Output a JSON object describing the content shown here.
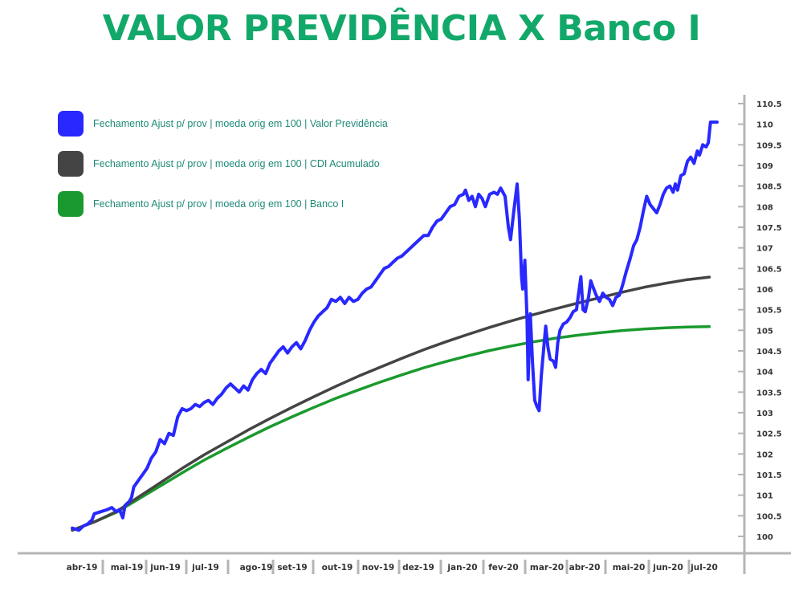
{
  "title": "VALOR PREVIDÊNCIA X Banco I",
  "colors": {
    "title": "#12a86a",
    "legend_text": "#1e8a78",
    "axis": "#b5b5b5"
  },
  "chart_data": {
    "type": "line",
    "title": "VALOR PREVIDÊNCIA X Banco I",
    "xlabel": "",
    "ylabel": "",
    "x_tick_labels": [
      "abr-19",
      "mai-19",
      "jun-19",
      "jul-19",
      "ago-19",
      "set-19",
      "out-19",
      "nov-19",
      "dez-19",
      "jan-20",
      "fev-20",
      "mar-20",
      "abr-20",
      "mai-20",
      "jun-20",
      "jul-20"
    ],
    "y_ticks": [
      "100",
      "100.5",
      "101",
      "101.5",
      "102",
      "102.5",
      "103",
      "103.5",
      "104",
      "104.5",
      "105",
      "105.5",
      "106",
      "106.5",
      "107",
      "107.5",
      "108",
      "108.5",
      "109",
      "109.5",
      "110",
      "110.5"
    ],
    "ylim": [
      100,
      110.5
    ],
    "grid": false,
    "legend_position": "top-left",
    "series": [
      {
        "name": "Fechamento Ajust p/ prov | moeda orig em 100 | Valor Previdência",
        "color": "#2828ff",
        "points": [
          [
            0.0,
            100.2
          ],
          [
            0.3,
            100.15
          ],
          [
            0.5,
            100.25
          ],
          [
            0.7,
            100.3
          ],
          [
            0.9,
            100.4
          ],
          [
            1.0,
            100.55
          ],
          [
            1.3,
            100.6
          ],
          [
            1.6,
            100.65
          ],
          [
            1.8,
            100.7
          ],
          [
            2.0,
            100.6
          ],
          [
            2.15,
            100.65
          ],
          [
            2.3,
            100.45
          ],
          [
            2.4,
            100.75
          ],
          [
            2.6,
            100.85
          ],
          [
            2.7,
            100.95
          ],
          [
            2.8,
            101.2
          ],
          [
            3.0,
            101.35
          ],
          [
            3.2,
            101.5
          ],
          [
            3.4,
            101.65
          ],
          [
            3.6,
            101.9
          ],
          [
            3.8,
            102.05
          ],
          [
            4.0,
            102.35
          ],
          [
            4.2,
            102.25
          ],
          [
            4.4,
            102.5
          ],
          [
            4.6,
            102.45
          ],
          [
            4.8,
            102.9
          ],
          [
            5.0,
            103.1
          ],
          [
            5.2,
            103.05
          ],
          [
            5.4,
            103.1
          ],
          [
            5.6,
            103.2
          ],
          [
            5.8,
            103.15
          ],
          [
            6.0,
            103.25
          ],
          [
            6.2,
            103.3
          ],
          [
            6.4,
            103.2
          ],
          [
            6.6,
            103.35
          ],
          [
            6.8,
            103.45
          ],
          [
            7.0,
            103.6
          ],
          [
            7.2,
            103.7
          ],
          [
            7.4,
            103.6
          ],
          [
            7.6,
            103.5
          ],
          [
            7.8,
            103.65
          ],
          [
            8.0,
            103.55
          ],
          [
            8.2,
            103.8
          ],
          [
            8.4,
            103.95
          ],
          [
            8.6,
            104.05
          ],
          [
            8.8,
            103.95
          ],
          [
            9.0,
            104.2
          ],
          [
            9.2,
            104.35
          ],
          [
            9.4,
            104.5
          ],
          [
            9.6,
            104.6
          ],
          [
            9.8,
            104.45
          ],
          [
            10.0,
            104.6
          ],
          [
            10.2,
            104.7
          ],
          [
            10.4,
            104.55
          ],
          [
            10.6,
            104.75
          ],
          [
            10.8,
            105.0
          ],
          [
            11.0,
            105.2
          ],
          [
            11.2,
            105.35
          ],
          [
            11.4,
            105.45
          ],
          [
            11.6,
            105.55
          ],
          [
            11.8,
            105.75
          ],
          [
            12.0,
            105.7
          ],
          [
            12.2,
            105.8
          ],
          [
            12.4,
            105.65
          ],
          [
            12.6,
            105.8
          ],
          [
            12.8,
            105.7
          ],
          [
            13.0,
            105.75
          ],
          [
            13.2,
            105.9
          ],
          [
            13.4,
            106.0
          ],
          [
            13.6,
            106.05
          ],
          [
            13.8,
            106.2
          ],
          [
            14.0,
            106.35
          ],
          [
            14.2,
            106.5
          ],
          [
            14.4,
            106.55
          ],
          [
            14.6,
            106.65
          ],
          [
            14.8,
            106.75
          ],
          [
            15.0,
            106.8
          ],
          [
            15.2,
            106.9
          ],
          [
            15.4,
            107.0
          ],
          [
            15.6,
            107.1
          ],
          [
            15.8,
            107.2
          ],
          [
            16.0,
            107.3
          ],
          [
            16.2,
            107.3
          ],
          [
            16.4,
            107.5
          ],
          [
            16.6,
            107.65
          ],
          [
            16.8,
            107.7
          ],
          [
            17.0,
            107.85
          ],
          [
            17.2,
            108.0
          ],
          [
            17.4,
            108.05
          ],
          [
            17.6,
            108.25
          ],
          [
            17.8,
            108.3
          ],
          [
            17.9,
            108.4
          ],
          [
            18.05,
            108.15
          ],
          [
            18.2,
            108.25
          ],
          [
            18.35,
            108.0
          ],
          [
            18.5,
            108.3
          ],
          [
            18.65,
            108.2
          ],
          [
            18.8,
            108.0
          ],
          [
            19.0,
            108.3
          ],
          [
            19.2,
            108.35
          ],
          [
            19.35,
            108.3
          ],
          [
            19.5,
            108.45
          ],
          [
            19.7,
            108.25
          ],
          [
            19.85,
            107.5
          ],
          [
            19.95,
            107.2
          ],
          [
            20.1,
            107.9
          ],
          [
            20.25,
            108.55
          ],
          [
            20.35,
            107.7
          ],
          [
            20.45,
            106.3
          ],
          [
            20.5,
            106.0
          ],
          [
            20.6,
            106.7
          ],
          [
            20.7,
            105.3
          ],
          [
            20.75,
            103.8
          ],
          [
            20.85,
            105.4
          ],
          [
            20.95,
            104.2
          ],
          [
            21.05,
            103.3
          ],
          [
            21.15,
            103.15
          ],
          [
            21.25,
            103.05
          ],
          [
            21.35,
            103.9
          ],
          [
            21.5,
            104.8
          ],
          [
            21.55,
            105.1
          ],
          [
            21.65,
            104.6
          ],
          [
            21.75,
            104.3
          ],
          [
            21.9,
            104.25
          ],
          [
            22.0,
            104.1
          ],
          [
            22.1,
            104.7
          ],
          [
            22.2,
            105.0
          ],
          [
            22.35,
            105.15
          ],
          [
            22.5,
            105.2
          ],
          [
            22.65,
            105.3
          ],
          [
            22.8,
            105.45
          ],
          [
            22.95,
            105.5
          ],
          [
            23.05,
            105.9
          ],
          [
            23.15,
            106.3
          ],
          [
            23.25,
            105.5
          ],
          [
            23.35,
            105.45
          ],
          [
            23.5,
            105.8
          ],
          [
            23.6,
            106.2
          ],
          [
            23.7,
            106.05
          ],
          [
            23.85,
            105.85
          ],
          [
            24.0,
            105.7
          ],
          [
            24.15,
            105.9
          ],
          [
            24.3,
            105.8
          ],
          [
            24.45,
            105.75
          ],
          [
            24.6,
            105.6
          ],
          [
            24.75,
            105.8
          ],
          [
            24.9,
            105.85
          ],
          [
            25.05,
            106.1
          ],
          [
            25.2,
            106.4
          ],
          [
            25.4,
            106.75
          ],
          [
            25.55,
            107.05
          ],
          [
            25.7,
            107.2
          ],
          [
            25.85,
            107.5
          ],
          [
            26.0,
            107.9
          ],
          [
            26.15,
            108.25
          ],
          [
            26.3,
            108.05
          ],
          [
            26.45,
            107.95
          ],
          [
            26.6,
            107.85
          ],
          [
            26.75,
            108.05
          ],
          [
            26.9,
            108.3
          ],
          [
            27.05,
            108.45
          ],
          [
            27.2,
            108.5
          ],
          [
            27.35,
            108.35
          ],
          [
            27.45,
            108.55
          ],
          [
            27.55,
            108.4
          ],
          [
            27.7,
            108.75
          ],
          [
            27.85,
            108.8
          ],
          [
            28.0,
            109.1
          ],
          [
            28.15,
            109.2
          ],
          [
            28.3,
            109.05
          ],
          [
            28.45,
            109.35
          ],
          [
            28.55,
            109.25
          ],
          [
            28.7,
            109.5
          ],
          [
            28.85,
            109.45
          ],
          [
            28.95,
            109.55
          ],
          [
            29.05,
            110.05
          ],
          [
            29.2,
            110.05
          ],
          [
            29.35,
            110.05
          ]
        ]
      },
      {
        "name": "Fechamento Ajust p/ prov | moeda orig em 100 | CDI Acumulado",
        "color": "#444444",
        "points": [
          [
            0.0,
            100.15
          ],
          [
            1.0,
            100.35
          ],
          [
            2.0,
            100.6
          ],
          [
            3.0,
            100.95
          ],
          [
            4.0,
            101.3
          ],
          [
            5.0,
            101.65
          ],
          [
            6.0,
            101.98
          ],
          [
            7.0,
            102.28
          ],
          [
            8.0,
            102.58
          ],
          [
            9.0,
            102.86
          ],
          [
            10.0,
            103.13
          ],
          [
            11.0,
            103.39
          ],
          [
            12.0,
            103.64
          ],
          [
            13.0,
            103.88
          ],
          [
            14.0,
            104.1
          ],
          [
            15.0,
            104.32
          ],
          [
            16.0,
            104.53
          ],
          [
            17.0,
            104.72
          ],
          [
            18.0,
            104.9
          ],
          [
            19.0,
            105.07
          ],
          [
            20.0,
            105.23
          ],
          [
            21.0,
            105.38
          ],
          [
            22.0,
            105.52
          ],
          [
            23.0,
            105.66
          ],
          [
            24.0,
            105.79
          ],
          [
            25.0,
            105.92
          ],
          [
            26.0,
            106.04
          ],
          [
            27.0,
            106.14
          ],
          [
            28.0,
            106.23
          ],
          [
            29.0,
            106.29
          ]
        ]
      },
      {
        "name": "Fechamento Ajust p/ prov | moeda orig em 100 | Banco I",
        "color": "#1a9a2e",
        "points": [
          [
            0.0,
            100.15
          ],
          [
            1.0,
            100.35
          ],
          [
            2.0,
            100.58
          ],
          [
            3.0,
            100.9
          ],
          [
            4.0,
            101.22
          ],
          [
            5.0,
            101.54
          ],
          [
            6.0,
            101.85
          ],
          [
            7.0,
            102.13
          ],
          [
            8.0,
            102.4
          ],
          [
            9.0,
            102.66
          ],
          [
            10.0,
            102.9
          ],
          [
            11.0,
            103.13
          ],
          [
            12.0,
            103.35
          ],
          [
            13.0,
            103.55
          ],
          [
            14.0,
            103.74
          ],
          [
            15.0,
            103.92
          ],
          [
            16.0,
            104.09
          ],
          [
            17.0,
            104.24
          ],
          [
            18.0,
            104.38
          ],
          [
            19.0,
            104.51
          ],
          [
            20.0,
            104.62
          ],
          [
            21.0,
            104.72
          ],
          [
            22.0,
            104.81
          ],
          [
            23.0,
            104.88
          ],
          [
            24.0,
            104.94
          ],
          [
            25.0,
            104.99
          ],
          [
            26.0,
            105.03
          ],
          [
            27.0,
            105.06
          ],
          [
            28.0,
            105.08
          ],
          [
            29.0,
            105.09
          ]
        ]
      }
    ]
  }
}
